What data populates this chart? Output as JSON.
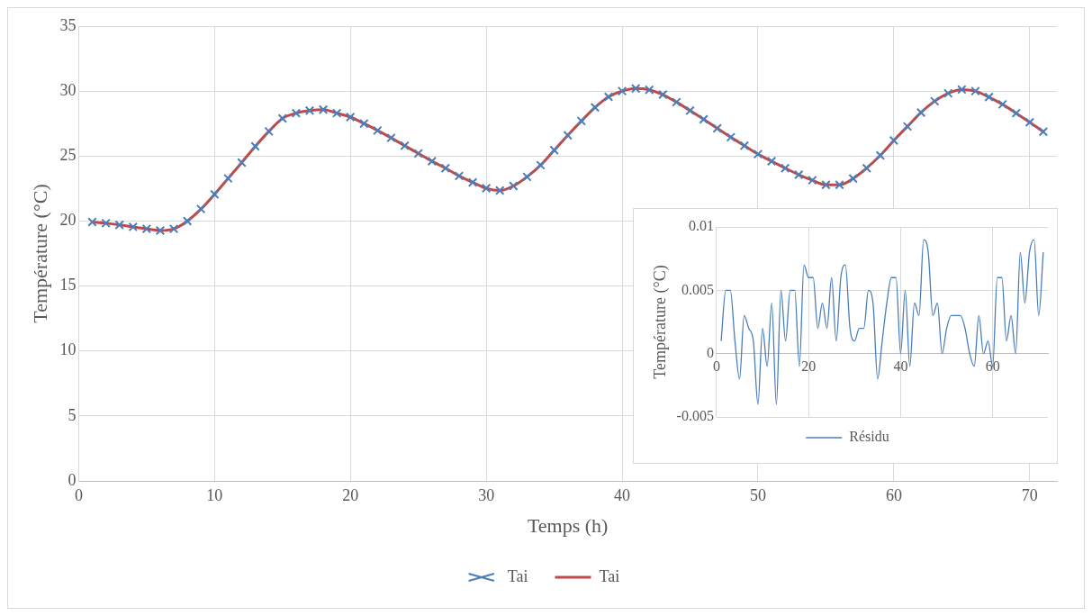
{
  "chart_data": [
    {
      "type": "line",
      "xlabel": "Temps (h)",
      "ylabel": "Température (°C)",
      "x": [
        1,
        2,
        3,
        4,
        5,
        6,
        7,
        8,
        9,
        10,
        11,
        12,
        13,
        14,
        15,
        16,
        17,
        18,
        19,
        20,
        21,
        22,
        23,
        24,
        25,
        26,
        27,
        28,
        29,
        30,
        31,
        32,
        33,
        34,
        35,
        36,
        37,
        38,
        39,
        40,
        41,
        42,
        43,
        44,
        45,
        46,
        47,
        48,
        49,
        50,
        51,
        52,
        53,
        54,
        55,
        56,
        57,
        58,
        59,
        60,
        61,
        62,
        63,
        64,
        65,
        66,
        67,
        68,
        69,
        70,
        71
      ],
      "series": [
        {
          "name": "Tai",
          "type": "scatter",
          "marker": "cross",
          "color": "#4a7ebb",
          "values": [
            19.93,
            19.83,
            19.7,
            19.55,
            19.4,
            19.27,
            19.4,
            20.0,
            20.92,
            22.06,
            23.28,
            24.5,
            25.75,
            26.9,
            27.9,
            28.3,
            28.5,
            28.57,
            28.3,
            28.0,
            27.5,
            26.97,
            26.4,
            25.8,
            25.2,
            24.6,
            24.07,
            23.47,
            22.98,
            22.52,
            22.35,
            22.7,
            23.4,
            24.3,
            25.45,
            26.6,
            27.7,
            28.74,
            29.56,
            30.0,
            30.2,
            30.1,
            29.73,
            29.15,
            28.5,
            27.83,
            27.13,
            26.45,
            25.8,
            25.15,
            24.6,
            24.07,
            23.56,
            23.14,
            22.78,
            22.78,
            23.27,
            24.07,
            25.05,
            26.2,
            27.28,
            28.35,
            29.22,
            29.83,
            30.12,
            30.0,
            29.54,
            28.98,
            28.3,
            27.6,
            26.87
          ]
        },
        {
          "name": "Tai",
          "type": "line",
          "marker": "none",
          "color": "#be4b48",
          "values": [
            19.93,
            19.83,
            19.7,
            19.55,
            19.4,
            19.27,
            19.4,
            20.0,
            20.92,
            22.06,
            23.28,
            24.5,
            25.75,
            26.9,
            27.9,
            28.3,
            28.5,
            28.57,
            28.3,
            28.0,
            27.5,
            26.97,
            26.4,
            25.8,
            25.2,
            24.6,
            24.07,
            23.47,
            22.98,
            22.52,
            22.35,
            22.7,
            23.4,
            24.3,
            25.45,
            26.6,
            27.7,
            28.74,
            29.56,
            30.0,
            30.2,
            30.1,
            29.73,
            29.15,
            28.5,
            27.83,
            27.13,
            26.45,
            25.8,
            25.15,
            24.6,
            24.07,
            23.56,
            23.14,
            22.78,
            22.78,
            23.27,
            24.07,
            25.05,
            26.2,
            27.28,
            28.35,
            29.22,
            29.83,
            30.12,
            30.0,
            29.54,
            28.98,
            28.3,
            27.6,
            26.87
          ]
        }
      ],
      "xlim": [
        0,
        72
      ],
      "xticks": [
        0,
        10,
        20,
        30,
        40,
        50,
        60,
        70
      ],
      "ylim": [
        0,
        35
      ],
      "yticks": [
        0,
        5,
        10,
        15,
        20,
        25,
        30,
        35
      ],
      "grid": true,
      "legend": "bottom"
    },
    {
      "type": "line",
      "ylabel": "Température (°C)",
      "x": [
        1,
        2,
        3,
        4,
        5,
        6,
        7,
        8,
        9,
        10,
        11,
        12,
        13,
        14,
        15,
        16,
        17,
        18,
        19,
        20,
        21,
        22,
        23,
        24,
        25,
        26,
        27,
        28,
        29,
        30,
        31,
        32,
        33,
        34,
        35,
        36,
        37,
        38,
        39,
        40,
        41,
        42,
        43,
        44,
        45,
        46,
        47,
        48,
        49,
        50,
        51,
        52,
        53,
        54,
        55,
        56,
        57,
        58,
        59,
        60,
        61,
        62,
        63,
        64,
        65,
        66,
        67,
        68,
        69,
        70,
        71
      ],
      "series": [
        {
          "name": "Résidu",
          "type": "line",
          "marker": "none",
          "color": "#4a7ebb",
          "values": [
            0.001,
            0.005,
            0.005,
            0.001,
            -0.002,
            0.003,
            0.002,
            0.001,
            -0.004,
            0.002,
            -0.001,
            0.004,
            -0.004,
            0.005,
            0.001,
            0.005,
            0.005,
            -0.001,
            0.007,
            0.006,
            0.006,
            0.002,
            0.004,
            0.002,
            0.006,
            0.001,
            0.006,
            0.007,
            0.002,
            0.001,
            0.002,
            0.002,
            0.005,
            0.004,
            -0.002,
            0.001,
            0.004,
            0.006,
            0.006,
            0,
            0.005,
            -0.001,
            0.004,
            0.003,
            0.009,
            0.008,
            0.003,
            0.004,
            0,
            0.002,
            0.003,
            0.003,
            0.003,
            0.002,
            0,
            -0.001,
            0.003,
            0,
            0.001,
            -0.001,
            0.006,
            0.006,
            0.001,
            0.003,
            0,
            0.008,
            0.004,
            0.008,
            0.009,
            0.003,
            0.008
          ]
        }
      ],
      "xlim": [
        0,
        72
      ],
      "xticks": [
        0,
        20,
        40,
        60
      ],
      "ylim": [
        -0.005,
        0.01
      ],
      "yticks": [
        -0.005,
        0,
        0.005,
        0.01
      ],
      "grid": true,
      "legend": "bottom"
    }
  ]
}
